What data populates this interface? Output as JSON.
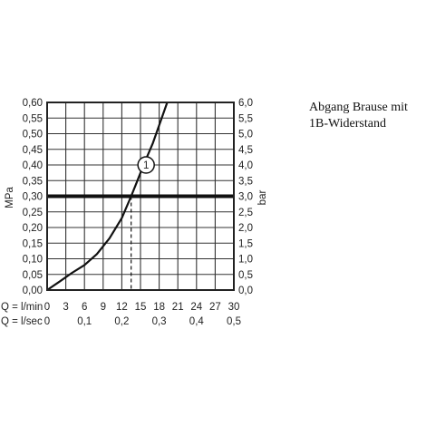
{
  "caption": "Abgang Brause mit 1B-Widerstand",
  "chart_data": {
    "type": "line",
    "title": "",
    "ylabel": "MPa",
    "y2label": "bar",
    "y_ticks_mpa": [
      "0,00",
      "0,05",
      "0,10",
      "0,15",
      "0,20",
      "0,25",
      "0,30",
      "0,35",
      "0,40",
      "0,45",
      "0,50",
      "0,55",
      "0,60"
    ],
    "y_ticks_bar": [
      "0,0",
      "0,5",
      "1,0",
      "1,5",
      "2,0",
      "2,5",
      "3,0",
      "3,5",
      "4,0",
      "4,5",
      "5,0",
      "5,5",
      "6,0"
    ],
    "ylim": [
      0,
      0.6
    ],
    "xlim": [
      0,
      30
    ],
    "x_axis_rows": [
      {
        "label": "Q = l/min",
        "ticks": [
          {
            "x": 0,
            "text": "0"
          },
          {
            "x": 3,
            "text": "3"
          },
          {
            "x": 6,
            "text": "6"
          },
          {
            "x": 9,
            "text": "9"
          },
          {
            "x": 12,
            "text": "12"
          },
          {
            "x": 15,
            "text": "15"
          },
          {
            "x": 18,
            "text": "18"
          },
          {
            "x": 21,
            "text": "21"
          },
          {
            "x": 24,
            "text": "24"
          },
          {
            "x": 27,
            "text": "27"
          },
          {
            "x": 30,
            "text": "30"
          }
        ]
      },
      {
        "label": "Q = l/sec",
        "ticks": [
          {
            "x": 0,
            "text": "0"
          },
          {
            "x": 6,
            "text": "0,1"
          },
          {
            "x": 12,
            "text": "0,2"
          },
          {
            "x": 18,
            "text": "0,3"
          },
          {
            "x": 24,
            "text": "0,4"
          },
          {
            "x": 30,
            "text": "0,5"
          }
        ]
      }
    ],
    "series": [
      {
        "points": [
          {
            "x": 0,
            "y": 0.0
          },
          {
            "x": 2,
            "y": 0.027
          },
          {
            "x": 4,
            "y": 0.055
          },
          {
            "x": 6,
            "y": 0.08
          },
          {
            "x": 8,
            "y": 0.115
          },
          {
            "x": 10,
            "y": 0.165
          },
          {
            "x": 12,
            "y": 0.23
          },
          {
            "x": 13.5,
            "y": 0.3
          },
          {
            "x": 14.5,
            "y": 0.35
          },
          {
            "x": 15.5,
            "y": 0.4
          },
          {
            "x": 17,
            "y": 0.47
          },
          {
            "x": 19.3,
            "y": 0.6
          }
        ]
      }
    ],
    "reference_line": {
      "y": 0.3
    },
    "operating_point": {
      "x": 13.5,
      "y": 0.3
    },
    "marker": {
      "label": "1",
      "x": 15.9,
      "y": 0.4
    },
    "grid": true
  }
}
